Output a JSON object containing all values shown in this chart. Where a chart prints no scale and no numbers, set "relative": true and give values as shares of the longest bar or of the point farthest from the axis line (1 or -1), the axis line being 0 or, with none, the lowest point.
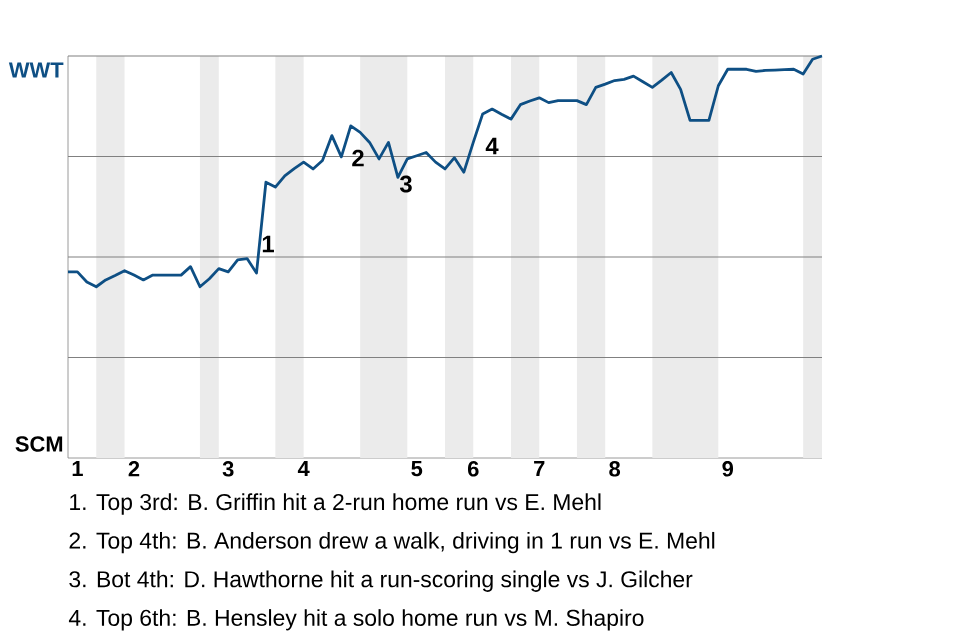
{
  "chart_data": {
    "type": "line",
    "categories": [
      null,
      "1",
      null,
      null,
      null,
      null,
      null,
      "2",
      null,
      null,
      null,
      null,
      null,
      null,
      null,
      null,
      null,
      "3",
      null,
      null,
      null,
      null,
      null,
      null,
      null,
      "4",
      null,
      null,
      null,
      null,
      null,
      null,
      null,
      null,
      null,
      null,
      null,
      "5",
      null,
      null,
      null,
      null,
      null,
      "6",
      null,
      null,
      null,
      null,
      null,
      null,
      "7",
      null,
      null,
      null,
      null,
      null,
      null,
      null,
      "8",
      null,
      null,
      null,
      null,
      null,
      null,
      null,
      null,
      null,
      null,
      null,
      "9",
      null,
      null,
      null,
      null,
      null,
      null,
      null,
      null,
      null,
      null
    ],
    "series": [
      {
        "color": "#0e4f84",
        "values": [
          0.463,
          0.463,
          0.438,
          0.426,
          0.443,
          0.454,
          0.466,
          0.455,
          0.443,
          0.455,
          0.455,
          0.455,
          0.455,
          0.476,
          0.426,
          0.446,
          0.471,
          0.463,
          0.493,
          0.496,
          0.46,
          0.686,
          0.674,
          0.702,
          0.72,
          0.736,
          0.719,
          0.74,
          0.802,
          0.749,
          0.826,
          0.81,
          0.785,
          0.744,
          0.785,
          0.698,
          0.744,
          0.752,
          0.76,
          0.736,
          0.719,
          0.747,
          0.711,
          0.785,
          0.856,
          0.868,
          0.855,
          0.843,
          0.879,
          0.888,
          0.896,
          0.884,
          0.889,
          0.889,
          0.889,
          0.879,
          0.922,
          0.93,
          0.939,
          0.942,
          0.95,
          0.936,
          0.922,
          0.94,
          0.959,
          0.917,
          0.84,
          0.84,
          0.84,
          0.926,
          0.967,
          0.967,
          0.967,
          0.962,
          0.964,
          0.965,
          0.966,
          0.967,
          0.955,
          0.992,
          1
        ]
      }
    ],
    "relative": true,
    "grid": "y",
    "annotations": [
      "1",
      "2",
      "3",
      "4",
      "WWT",
      "SCM",
      "1. Top 3rd: B. Griffin hit a 2-run home run vs E. Mehl",
      "2. Top 4th: B. Anderson drew a walk, driving in 1 run vs E. Mehl",
      "3. Bot 4th: D. Hawthorne hit a run-scoring single vs J. Gilcher",
      "4. Top 6th: B. Hensley hit a solo home run vs M. Shapiro"
    ]
  }
}
